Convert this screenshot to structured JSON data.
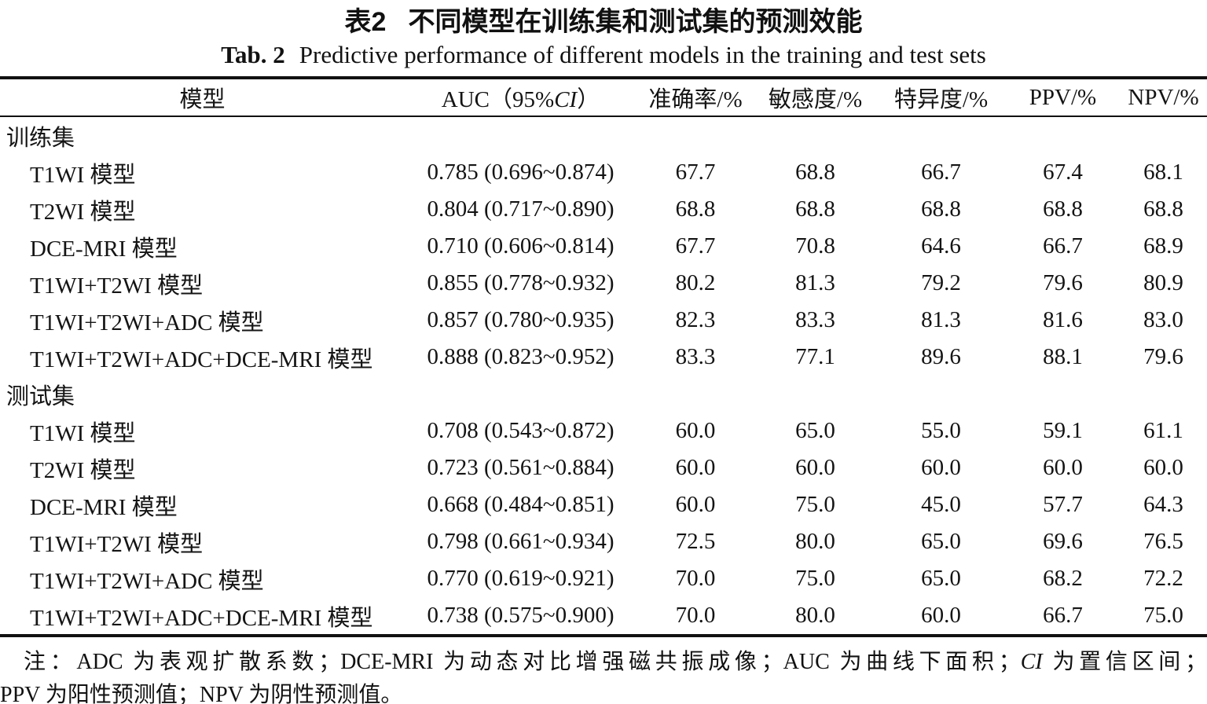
{
  "title": {
    "tag": "表2",
    "text": "不同模型在训练集和测试集的预测效能"
  },
  "subtitle": {
    "tag": "Tab. 2",
    "text": "Predictive performance of different models in the training and test sets"
  },
  "table": {
    "headers": {
      "model": "模型",
      "auc_prefix": "AUC（95%",
      "auc_italic": "CI",
      "auc_suffix": "）",
      "accuracy": "准确率/%",
      "sensitivity": "敏感度/%",
      "specificity": "特异度/%",
      "ppv": "PPV/%",
      "npv": "NPV/%"
    },
    "sections": [
      {
        "label": "训练集",
        "rows": [
          {
            "model": "T1WI 模型",
            "auc": "0.785 (0.696~0.874)",
            "accuracy": "67.7",
            "sensitivity": "68.8",
            "specificity": "66.7",
            "ppv": "67.4",
            "npv": "68.1"
          },
          {
            "model": "T2WI 模型",
            "auc": "0.804 (0.717~0.890)",
            "accuracy": "68.8",
            "sensitivity": "68.8",
            "specificity": "68.8",
            "ppv": "68.8",
            "npv": "68.8"
          },
          {
            "model": "DCE-MRI 模型",
            "auc": "0.710 (0.606~0.814)",
            "accuracy": "67.7",
            "sensitivity": "70.8",
            "specificity": "64.6",
            "ppv": "66.7",
            "npv": "68.9"
          },
          {
            "model": "T1WI+T2WI 模型",
            "auc": "0.855 (0.778~0.932)",
            "accuracy": "80.2",
            "sensitivity": "81.3",
            "specificity": "79.2",
            "ppv": "79.6",
            "npv": "80.9"
          },
          {
            "model": "T1WI+T2WI+ADC 模型",
            "auc": "0.857 (0.780~0.935)",
            "accuracy": "82.3",
            "sensitivity": "83.3",
            "specificity": "81.3",
            "ppv": "81.6",
            "npv": "83.0"
          },
          {
            "model": "T1WI+T2WI+ADC+DCE-MRI 模型",
            "auc": "0.888 (0.823~0.952)",
            "accuracy": "83.3",
            "sensitivity": "77.1",
            "specificity": "89.6",
            "ppv": "88.1",
            "npv": "79.6"
          }
        ]
      },
      {
        "label": "测试集",
        "rows": [
          {
            "model": "T1WI 模型",
            "auc": "0.708 (0.543~0.872)",
            "accuracy": "60.0",
            "sensitivity": "65.0",
            "specificity": "55.0",
            "ppv": "59.1",
            "npv": "61.1"
          },
          {
            "model": "T2WI 模型",
            "auc": "0.723 (0.561~0.884)",
            "accuracy": "60.0",
            "sensitivity": "60.0",
            "specificity": "60.0",
            "ppv": "60.0",
            "npv": "60.0"
          },
          {
            "model": "DCE-MRI 模型",
            "auc": "0.668 (0.484~0.851)",
            "accuracy": "60.0",
            "sensitivity": "75.0",
            "specificity": "45.0",
            "ppv": "57.7",
            "npv": "64.3"
          },
          {
            "model": "T1WI+T2WI 模型",
            "auc": "0.798 (0.661~0.934)",
            "accuracy": "72.5",
            "sensitivity": "80.0",
            "specificity": "65.0",
            "ppv": "69.6",
            "npv": "76.5"
          },
          {
            "model": "T1WI+T2WI+ADC 模型",
            "auc": "0.770 (0.619~0.921)",
            "accuracy": "70.0",
            "sensitivity": "75.0",
            "specificity": "65.0",
            "ppv": "68.2",
            "npv": "72.2"
          },
          {
            "model": "T1WI+T2WI+ADC+DCE-MRI 模型",
            "auc": "0.738 (0.575~0.900)",
            "accuracy": "70.0",
            "sensitivity": "80.0",
            "specificity": "60.0",
            "ppv": "66.7",
            "npv": "75.0"
          }
        ]
      }
    ]
  },
  "footnote": {
    "line1_a": "注：ADC 为表观扩散系数；DCE-MRI 为动态对比增强磁共振成像；AUC 为曲线下面积；",
    "line1_italic": "CI",
    "line1_b": " 为置信区间；",
    "line2": "PPV 为阳性预测值；NPV 为阴性预测值。"
  },
  "colors": {
    "text": "#141414",
    "rule": "#111111",
    "background": "#ffffff"
  }
}
